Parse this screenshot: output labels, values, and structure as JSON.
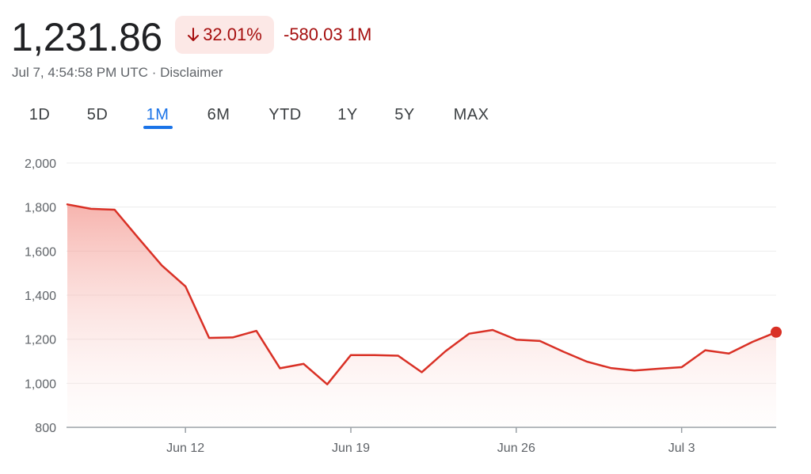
{
  "header": {
    "price": "1,231.86",
    "change_pct": "32.01%",
    "change_abs": "-580.03",
    "period": "1M",
    "timestamp": "Jul 7, 4:54:58 PM UTC",
    "separator": "·",
    "disclaimer": "Disclaimer",
    "trend_color": "#d93025"
  },
  "tabs": [
    {
      "label": "1D"
    },
    {
      "label": "5D"
    },
    {
      "label": "1M",
      "active": true
    },
    {
      "label": "6M"
    },
    {
      "label": "YTD"
    },
    {
      "label": "1Y"
    },
    {
      "label": "5Y"
    },
    {
      "label": "MAX"
    }
  ],
  "chart_data": {
    "type": "area",
    "ylim": [
      800,
      2000
    ],
    "xlim": [
      "Jun 7",
      "Jul 7"
    ],
    "y_ticks": [
      {
        "value": 2000,
        "label": "2,000"
      },
      {
        "value": 1800,
        "label": "1,800"
      },
      {
        "value": 1600,
        "label": "1,600"
      },
      {
        "value": 1400,
        "label": "1,400"
      },
      {
        "value": 1200,
        "label": "1,200"
      },
      {
        "value": 1000,
        "label": "1,000"
      },
      {
        "value": 800,
        "label": "800"
      }
    ],
    "x_ticks": [
      {
        "date": "Jun 12",
        "label": "Jun 12"
      },
      {
        "date": "Jun 19",
        "label": "Jun 19"
      },
      {
        "date": "Jun 26",
        "label": "Jun 26"
      },
      {
        "date": "Jul 3",
        "label": "Jul 3"
      }
    ],
    "grid": true,
    "points": [
      {
        "date": "Jun 7",
        "value": 1812
      },
      {
        "date": "Jun 8",
        "value": 1792
      },
      {
        "date": "Jun 9",
        "value": 1788
      },
      {
        "date": "Jun 10",
        "value": 1660
      },
      {
        "date": "Jun 11",
        "value": 1535
      },
      {
        "date": "Jun 12",
        "value": 1440
      },
      {
        "date": "Jun 13",
        "value": 1206
      },
      {
        "date": "Jun 14",
        "value": 1208
      },
      {
        "date": "Jun 15",
        "value": 1238
      },
      {
        "date": "Jun 16",
        "value": 1068
      },
      {
        "date": "Jun 17",
        "value": 1088
      },
      {
        "date": "Jun 18",
        "value": 995
      },
      {
        "date": "Jun 19",
        "value": 1128
      },
      {
        "date": "Jun 20",
        "value": 1128
      },
      {
        "date": "Jun 21",
        "value": 1125
      },
      {
        "date": "Jun 22",
        "value": 1050
      },
      {
        "date": "Jun 23",
        "value": 1145
      },
      {
        "date": "Jun 24",
        "value": 1225
      },
      {
        "date": "Jun 25",
        "value": 1242
      },
      {
        "date": "Jun 26",
        "value": 1198
      },
      {
        "date": "Jun 27",
        "value": 1192
      },
      {
        "date": "Jun 28",
        "value": 1143
      },
      {
        "date": "Jun 29",
        "value": 1098
      },
      {
        "date": "Jun 30",
        "value": 1069
      },
      {
        "date": "Jul 1",
        "value": 1058
      },
      {
        "date": "Jul 2",
        "value": 1066
      },
      {
        "date": "Jul 3",
        "value": 1073
      },
      {
        "date": "Jul 4",
        "value": 1150
      },
      {
        "date": "Jul 5",
        "value": 1135
      },
      {
        "date": "Jul 6",
        "value": 1188
      },
      {
        "date": "Jul 7",
        "value": 1232
      }
    ]
  }
}
